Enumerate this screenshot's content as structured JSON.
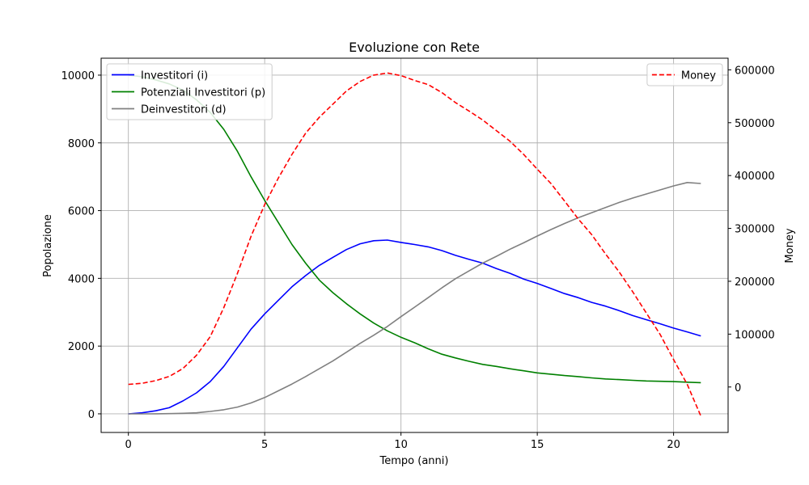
{
  "chart_data": {
    "type": "line",
    "title": "Evoluzione con Rete",
    "xlabel": "Tempo (anni)",
    "ylabel": "Popolazione",
    "ylabel_right": "Money",
    "xlim": [
      -1.0,
      22.0
    ],
    "ylim": [
      -550,
      10500
    ],
    "ylim_right": [
      -86000,
      622000
    ],
    "x_ticks": [
      0,
      5,
      10,
      15,
      20
    ],
    "y_ticks": [
      0,
      2000,
      4000,
      6000,
      8000,
      10000
    ],
    "y_ticks_right": [
      0,
      100000,
      200000,
      300000,
      400000,
      500000,
      600000
    ],
    "grid": true,
    "legend_left_position": "upper-left",
    "legend_right_position": "upper-right",
    "series": [
      {
        "name": "Investitori (i)",
        "color": "#0000ff",
        "style": "solid",
        "axis": "left",
        "x": [
          0,
          0.5,
          1,
          1.5,
          2,
          2.5,
          3,
          3.5,
          4,
          4.5,
          5,
          5.5,
          6,
          6.5,
          7,
          7.5,
          8,
          8.5,
          9,
          9.5,
          10,
          10.5,
          11,
          11.5,
          12,
          12.5,
          13,
          13.5,
          14,
          14.5,
          15,
          15.5,
          16,
          16.5,
          17,
          17.5,
          18,
          18.5,
          19,
          19.5,
          20,
          20.5,
          21
        ],
        "values": [
          0,
          30,
          90,
          180,
          380,
          620,
          950,
          1400,
          1950,
          2500,
          2950,
          3350,
          3750,
          4080,
          4380,
          4620,
          4850,
          5020,
          5110,
          5130,
          5060,
          5000,
          4930,
          4820,
          4680,
          4560,
          4450,
          4290,
          4150,
          3980,
          3850,
          3700,
          3550,
          3430,
          3290,
          3180,
          3050,
          2900,
          2780,
          2660,
          2530,
          2420,
          2300
        ]
      },
      {
        "name": "Potenziali Investitori (p)",
        "color": "#008000",
        "style": "solid",
        "axis": "left",
        "x": [
          0,
          0.5,
          1,
          1.5,
          2,
          2.5,
          3,
          3.5,
          4,
          4.5,
          5,
          5.5,
          6,
          6.5,
          7,
          7.5,
          8,
          8.5,
          9,
          9.5,
          10,
          10.5,
          11,
          11.5,
          12,
          12.5,
          13,
          13.5,
          14,
          14.5,
          15,
          15.5,
          16,
          16.5,
          17,
          17.5,
          18,
          18.5,
          19,
          19.5,
          20,
          20.5,
          21
        ],
        "values": [
          10000,
          9950,
          9860,
          9740,
          9560,
          9270,
          8900,
          8400,
          7750,
          7000,
          6300,
          5650,
          5000,
          4450,
          3950,
          3580,
          3250,
          2950,
          2680,
          2450,
          2260,
          2100,
          1920,
          1760,
          1650,
          1550,
          1460,
          1400,
          1330,
          1270,
          1210,
          1170,
          1130,
          1100,
          1060,
          1030,
          1010,
          990,
          970,
          960,
          950,
          935,
          920
        ]
      },
      {
        "name": "Deinvestitori (d)",
        "color": "#808080",
        "style": "solid",
        "axis": "left",
        "x": [
          0,
          0.5,
          1,
          1.5,
          2,
          2.5,
          3,
          3.5,
          4,
          4.5,
          5,
          5.5,
          6,
          6.5,
          7,
          7.5,
          8,
          8.5,
          9,
          9.5,
          10,
          10.5,
          11,
          11.5,
          12,
          12.5,
          13,
          13.5,
          14,
          14.5,
          15,
          15.5,
          16,
          16.5,
          17,
          17.5,
          18,
          18.5,
          19,
          19.5,
          20,
          20.5,
          21
        ],
        "values": [
          0,
          0,
          2,
          5,
          15,
          30,
          70,
          120,
          200,
          320,
          480,
          680,
          880,
          1100,
          1330,
          1560,
          1820,
          2080,
          2320,
          2580,
          2870,
          3150,
          3430,
          3720,
          3990,
          4220,
          4450,
          4650,
          4860,
          5050,
          5250,
          5440,
          5620,
          5790,
          5940,
          6090,
          6240,
          6370,
          6490,
          6610,
          6730,
          6830,
          6800
        ]
      },
      {
        "name": "Money",
        "color": "#ff0000",
        "style": "dashed",
        "axis": "right",
        "x": [
          0,
          0.5,
          1,
          1.5,
          2,
          2.5,
          3,
          3.5,
          4,
          4.5,
          5,
          5.5,
          6,
          6.5,
          7,
          7.5,
          8,
          8.5,
          9,
          9.5,
          10,
          10.5,
          11,
          11.5,
          12,
          12.5,
          13,
          13.5,
          14,
          14.5,
          15,
          15.5,
          16,
          16.5,
          17,
          17.5,
          18,
          18.5,
          19,
          19.5,
          20,
          20.5,
          21
        ],
        "values": [
          5000,
          7000,
          12000,
          20000,
          35000,
          60000,
          95000,
          150000,
          215000,
          285000,
          345000,
          395000,
          440000,
          480000,
          510000,
          535000,
          560000,
          578000,
          590000,
          594000,
          589000,
          580000,
          572000,
          557000,
          538000,
          522000,
          505000,
          485000,
          465000,
          440000,
          412000,
          385000,
          352000,
          318000,
          288000,
          252000,
          218000,
          180000,
          140000,
          100000,
          52000,
          5000,
          -55000
        ]
      }
    ]
  }
}
